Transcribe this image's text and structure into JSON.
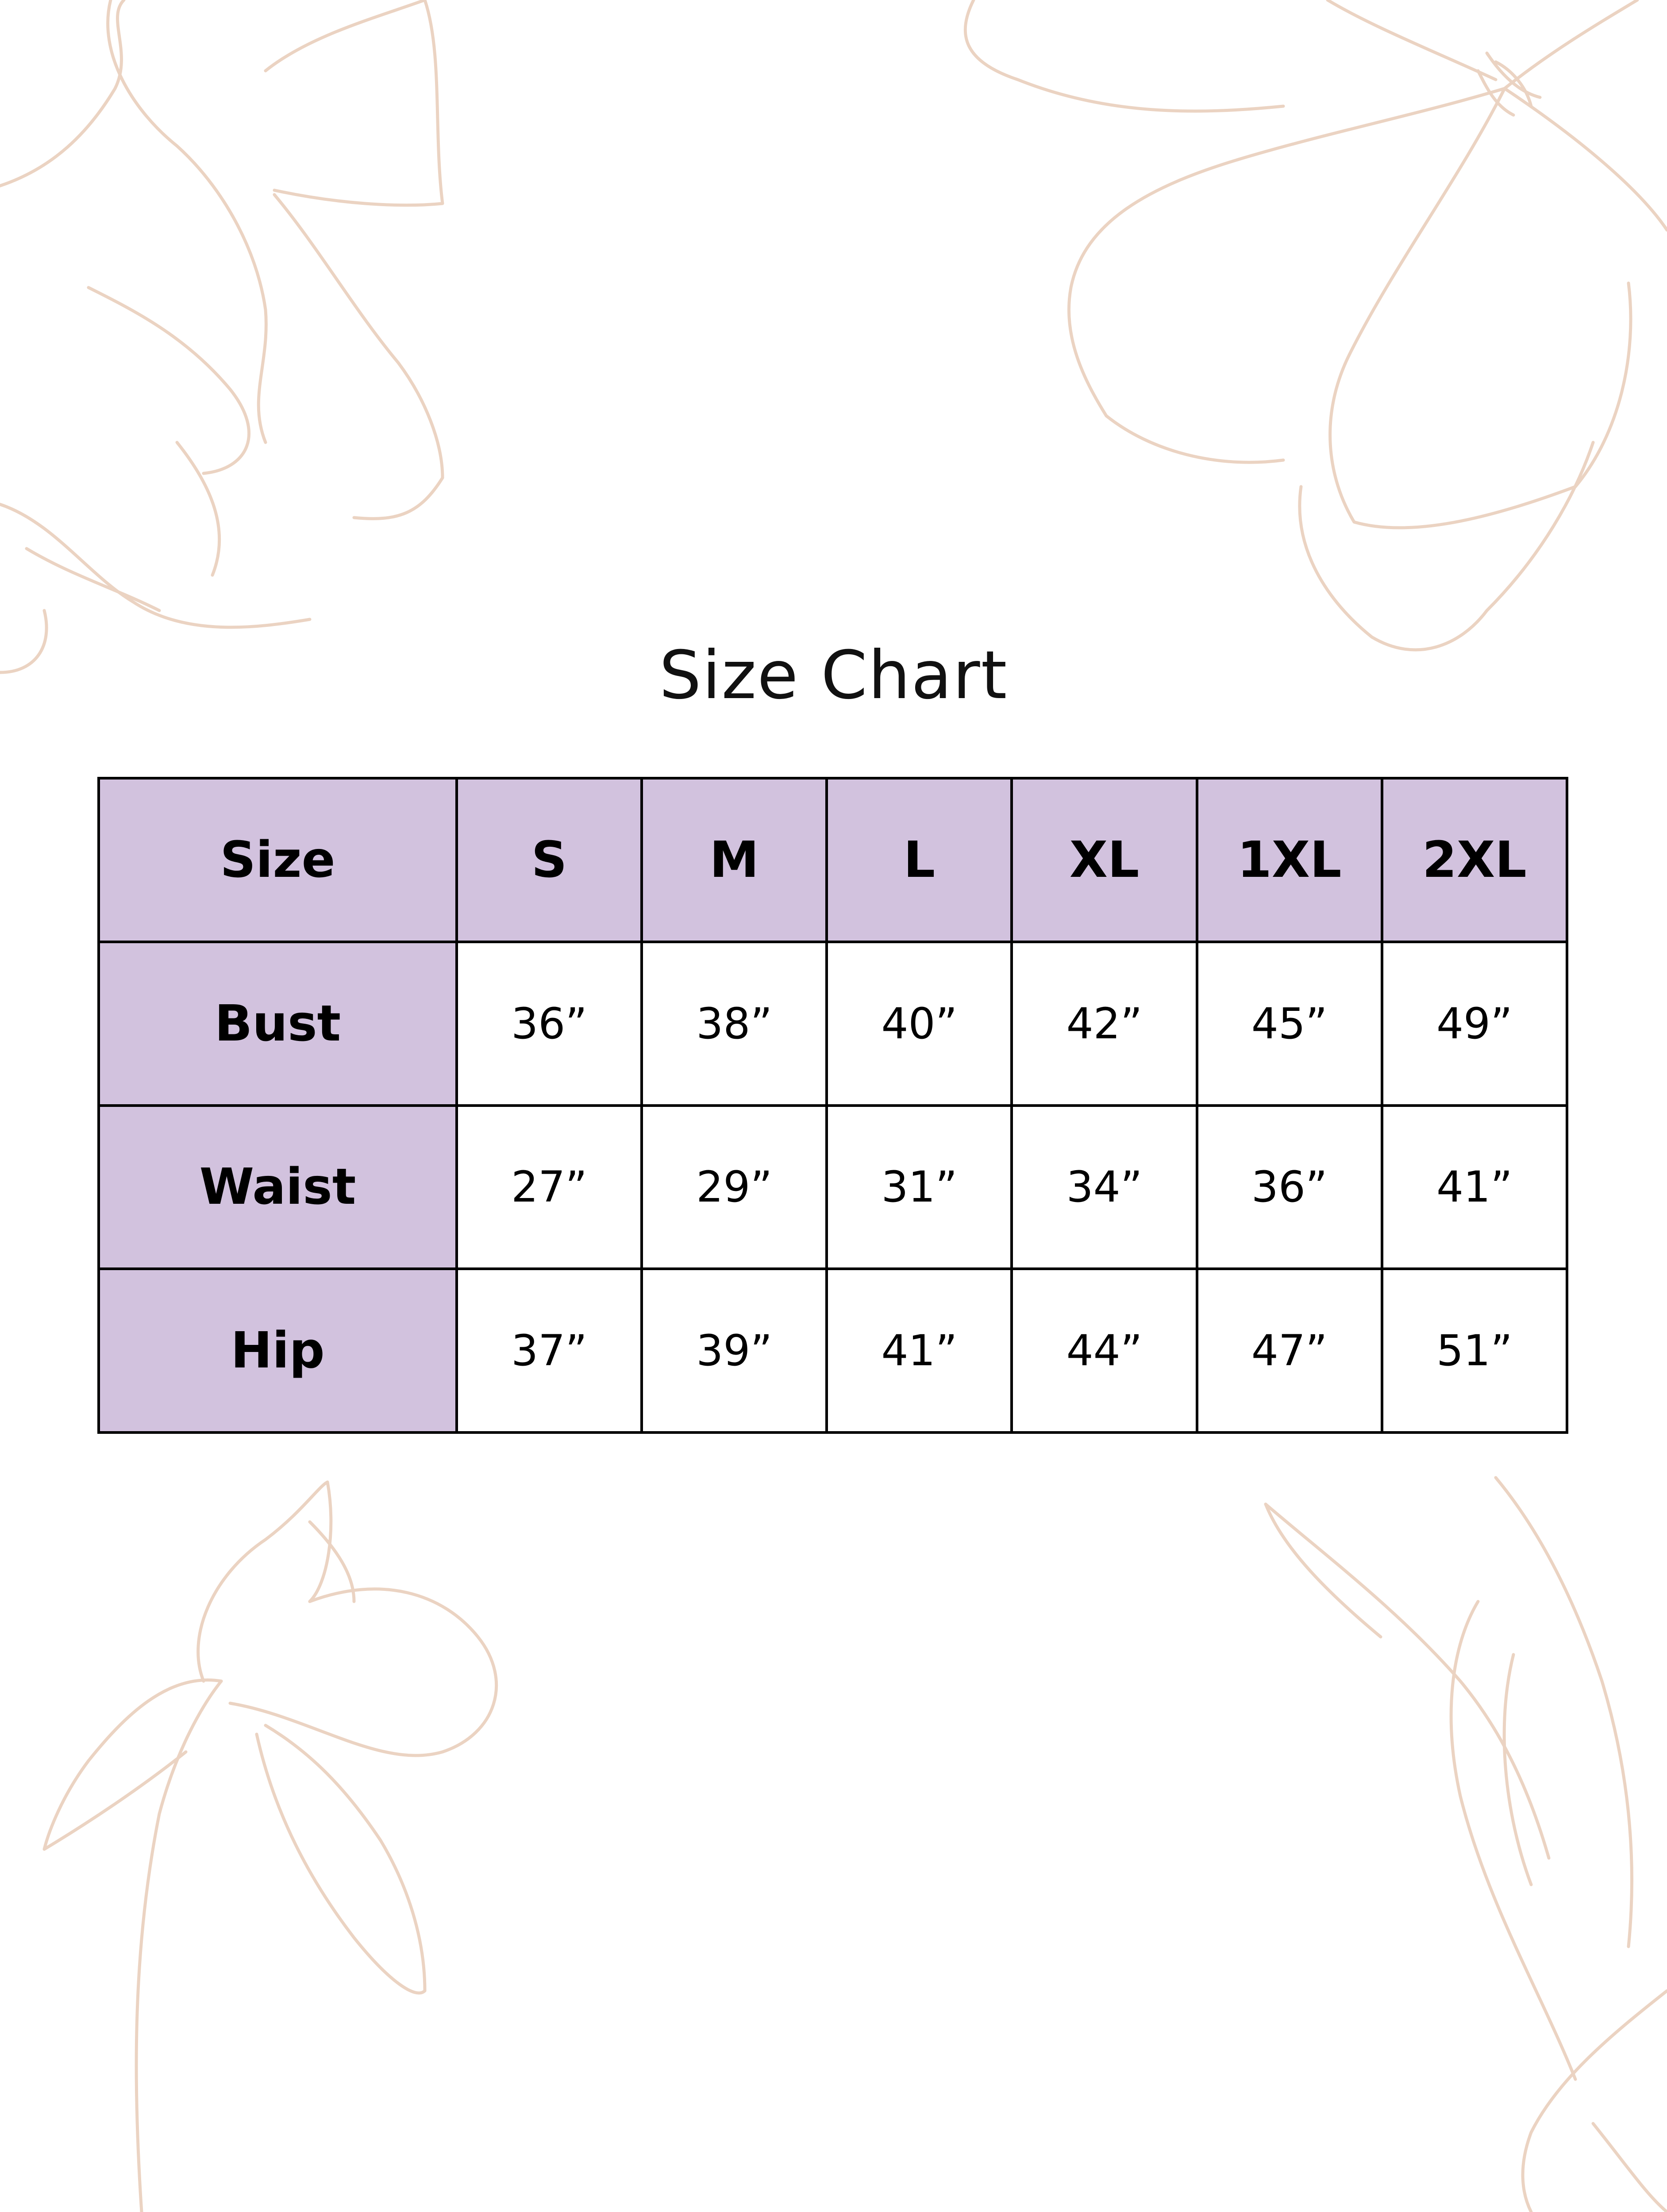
{
  "title": "Size Chart",
  "colors": {
    "header_bg": "#d2c2de",
    "border": "#000000",
    "flower_line": "#ebd3c2"
  },
  "table": {
    "headers": [
      "Size",
      "S",
      "M",
      "L",
      "XL",
      "1XL",
      "2XL"
    ],
    "rows": [
      {
        "label": "Bust",
        "values": [
          "36”",
          "38”",
          "40”",
          "42”",
          "45”",
          "49”"
        ]
      },
      {
        "label": "Waist",
        "values": [
          "27”",
          "29”",
          "31”",
          "34”",
          "36”",
          "41”"
        ]
      },
      {
        "label": "Hip",
        "values": [
          "37”",
          "39”",
          "41”",
          "44”",
          "47”",
          "51”"
        ]
      }
    ]
  }
}
